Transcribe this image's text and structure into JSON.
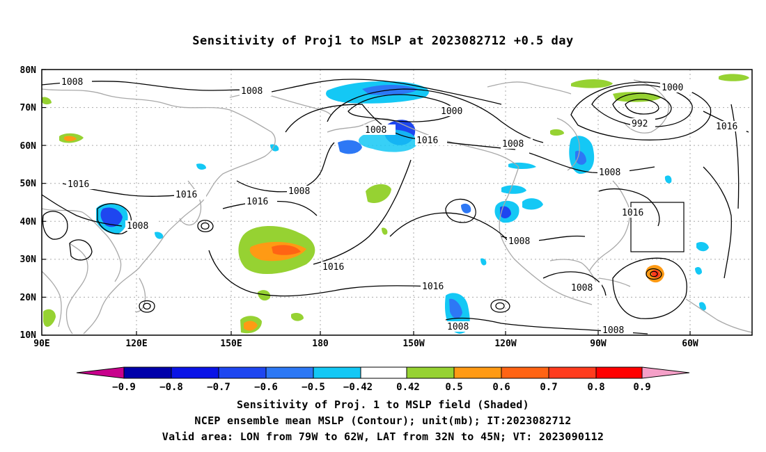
{
  "title": "Sensitivity of Proj1 to MSLP at 2023082712 +0.5 day",
  "lat_labels": [
    "80N",
    "70N",
    "60N",
    "50N",
    "40N",
    "30N",
    "20N",
    "10N"
  ],
  "lon_labels": [
    "90E",
    "120E",
    "150E",
    "180",
    "150W",
    "120W",
    "90W",
    "60W"
  ],
  "contour_labels": [
    "1008",
    "1008",
    "1000",
    "1008",
    "1008",
    "1016",
    "1016",
    "1008",
    "1016",
    "1008",
    "1016",
    "1008",
    "1016",
    "1008",
    "1016",
    "1008",
    "1008",
    "1016",
    "1008",
    "1000",
    "992",
    "1016",
    "1008"
  ],
  "colorbar_labels": [
    "−0.9",
    "−0.8",
    "−0.7",
    "−0.6",
    "−0.5",
    "−0.42",
    "0.42",
    "0.5",
    "0.6",
    "0.7",
    "0.8",
    "0.9"
  ],
  "colorbar_colors": [
    "#c8008c",
    "#0000aa",
    "#0a14e6",
    "#1e46f0",
    "#2d78f5",
    "#14c8f5",
    "#ffffff",
    "#96d232",
    "#ff9a14",
    "#ff6414",
    "#ff3c1e",
    "#ff0000",
    "#f5a0c8"
  ],
  "captions": [
    "Sensitivity of Proj. 1 to MSLP field (Shaded)",
    "NCEP ensemble mean MSLP (Contour); unit(mb); IT:2023082712",
    "Valid area: LON from 79W to 62W, LAT from 32N to 45N; VT: 2023090112"
  ]
}
